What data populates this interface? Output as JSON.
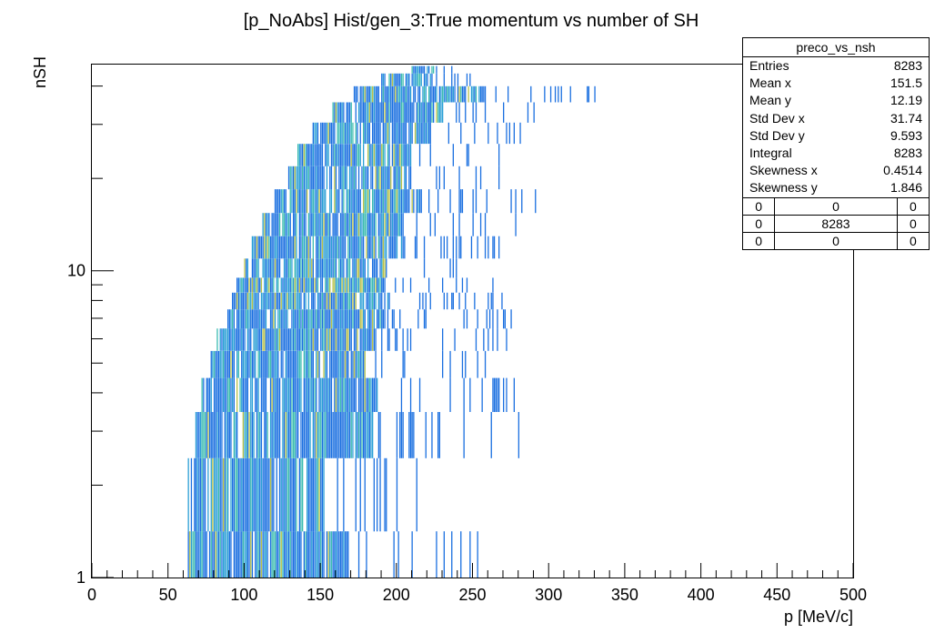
{
  "title": "[p_NoAbs] Hist/gen_3:True momentum vs number of SH",
  "stats": {
    "name": "preco_vs_nsh",
    "rows": [
      {
        "label": "Entries",
        "value": "8283"
      },
      {
        "label": "Mean x",
        "value": "151.5"
      },
      {
        "label": "Mean y",
        "value": "12.19"
      },
      {
        "label": "Std Dev x",
        "value": "31.74"
      },
      {
        "label": "Std Dev y",
        "value": "9.593"
      },
      {
        "label": "Integral",
        "value": "8283"
      },
      {
        "label": "Skewness x",
        "value": "0.4514"
      },
      {
        "label": "Skewness y",
        "value": "1.846"
      }
    ],
    "overflow_grid": [
      [
        "0",
        "0",
        "0"
      ],
      [
        "0",
        "8283",
        "0"
      ],
      [
        "0",
        "0",
        "0"
      ]
    ]
  },
  "chart_data": {
    "type": "heatmap",
    "title": "[p_NoAbs] Hist/gen_3:True momentum vs number of SH",
    "xlabel": "p [MeV/c]",
    "ylabel": "nSH",
    "xlim": [
      0,
      500
    ],
    "ylim": [
      1,
      47
    ],
    "ylog": true,
    "x_ticks": [
      "0",
      "50",
      "100",
      "150",
      "200",
      "250",
      "300",
      "350",
      "400",
      "450",
      "500"
    ],
    "y_ticks": [
      "1",
      "10"
    ],
    "bin_width_x": 1,
    "colors": {
      "low": "#1a6fe0",
      "mid": "#2a9fd6",
      "high": "#3cbcb0",
      "peak": "#b8c24a"
    },
    "envelope": [
      {
        "nsh": 1,
        "pmin": 63,
        "pmax": 257
      },
      {
        "nsh": 2,
        "pmin": 63,
        "pmax": 225
      },
      {
        "nsh": 3,
        "pmin": 68,
        "pmax": 280
      },
      {
        "nsh": 4,
        "pmin": 72,
        "pmax": 283
      },
      {
        "nsh": 5,
        "pmin": 78,
        "pmax": 262
      },
      {
        "nsh": 6,
        "pmin": 82,
        "pmax": 272
      },
      {
        "nsh": 7,
        "pmin": 88,
        "pmax": 278
      },
      {
        "nsh": 8,
        "pmin": 92,
        "pmax": 280
      },
      {
        "nsh": 9,
        "pmin": 95,
        "pmax": 270
      },
      {
        "nsh": 10,
        "pmin": 100,
        "pmax": 268
      },
      {
        "nsh": 12,
        "pmin": 105,
        "pmax": 285
      },
      {
        "nsh": 14,
        "pmin": 112,
        "pmax": 278
      },
      {
        "nsh": 17,
        "pmin": 120,
        "pmax": 293
      },
      {
        "nsh": 20,
        "pmin": 128,
        "pmax": 270
      },
      {
        "nsh": 24,
        "pmin": 135,
        "pmax": 270
      },
      {
        "nsh": 28,
        "pmin": 145,
        "pmax": 285
      },
      {
        "nsh": 33,
        "pmin": 158,
        "pmax": 290
      },
      {
        "nsh": 38,
        "pmin": 172,
        "pmax": 330
      },
      {
        "nsh": 42,
        "pmin": 190,
        "pmax": 250
      },
      {
        "nsh": 46,
        "pmin": 210,
        "pmax": 240
      }
    ],
    "stat_mean_x": 151.5,
    "stat_mean_y": 12.19
  }
}
